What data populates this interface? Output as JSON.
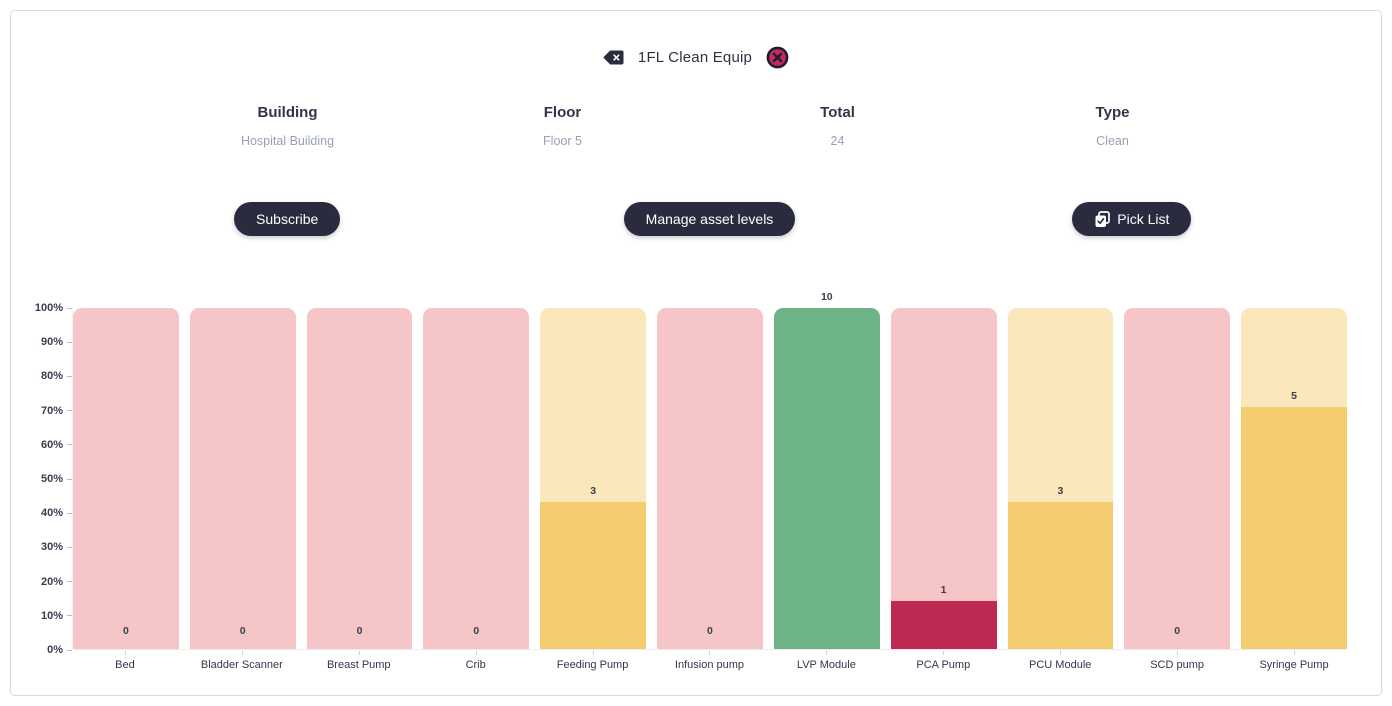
{
  "header": {
    "title": "1FL Clean Equip",
    "back_icon": "backspace-icon",
    "close_icon": "close-circle-icon"
  },
  "info": {
    "fields": [
      {
        "label": "Building",
        "value": "Hospital Building"
      },
      {
        "label": "Floor",
        "value": "Floor 5"
      },
      {
        "label": "Total",
        "value": "24"
      },
      {
        "label": "Type",
        "value": "Clean"
      }
    ]
  },
  "actions": {
    "subscribe": "Subscribe",
    "manage": "Manage asset levels",
    "picklist": "Pick List"
  },
  "colors": {
    "pink_track": "#f5c5c8",
    "cream_track": "#fae7bb",
    "amber_fill": "#f5cd6e",
    "green_fill": "#6cb388",
    "crimson_fill": "#bf2a55",
    "navy_text": "#33344a",
    "muted_value_text": "#98a1b3",
    "button_bg": "#2b2b40",
    "close_icon_fill": "#c62a5c",
    "close_icon_ring": "#1f1f33"
  },
  "chart_data": {
    "type": "bar",
    "title": "",
    "xlabel": "",
    "ylabel": "",
    "ylim": [
      0,
      100
    ],
    "y_unit": "%",
    "grid": false,
    "legend": false,
    "y_ticks": [
      "0%",
      "10%",
      "20%",
      "30%",
      "40%",
      "50%",
      "60%",
      "70%",
      "80%",
      "90%",
      "100%"
    ],
    "categories": [
      "Bed",
      "Bladder Scanner",
      "Breast Pump",
      "Crib",
      "Feeding Pump",
      "Infusion pump",
      "LVP Module",
      "PCA Pump",
      "PCU Module",
      "SCD pump",
      "Syringe Pump"
    ],
    "values": [
      0,
      0,
      0,
      0,
      3,
      0,
      10,
      1,
      3,
      0,
      5
    ],
    "fill_percents": [
      0,
      0,
      0,
      0,
      43,
      0,
      100,
      14,
      43,
      0,
      71
    ],
    "bars": [
      {
        "label": "Bed",
        "value": 0,
        "percent": 0,
        "track": "#f5c5c8",
        "fill": null
      },
      {
        "label": "Bladder Scanner",
        "value": 0,
        "percent": 0,
        "track": "#f5c5c8",
        "fill": null
      },
      {
        "label": "Breast Pump",
        "value": 0,
        "percent": 0,
        "track": "#f5c5c8",
        "fill": null
      },
      {
        "label": "Crib",
        "value": 0,
        "percent": 0,
        "track": "#f5c5c8",
        "fill": null
      },
      {
        "label": "Feeding Pump",
        "value": 3,
        "percent": 43,
        "track": "#fae7bb",
        "fill": "#f5cd6e"
      },
      {
        "label": "Infusion pump",
        "value": 0,
        "percent": 0,
        "track": "#f5c5c8",
        "fill": null
      },
      {
        "label": "LVP Module",
        "value": 10,
        "percent": 100,
        "track": "#6cb388",
        "fill": "#6cb388"
      },
      {
        "label": "PCA Pump",
        "value": 1,
        "percent": 14,
        "track": "#f5c5c8",
        "fill": "#bf2a55"
      },
      {
        "label": "PCU Module",
        "value": 3,
        "percent": 43,
        "track": "#fae7bb",
        "fill": "#f5cd6e"
      },
      {
        "label": "SCD pump",
        "value": 0,
        "percent": 0,
        "track": "#f5c5c8",
        "fill": null
      },
      {
        "label": "Syringe Pump",
        "value": 5,
        "percent": 71,
        "track": "#fae7bb",
        "fill": "#f5cd6e"
      }
    ]
  }
}
